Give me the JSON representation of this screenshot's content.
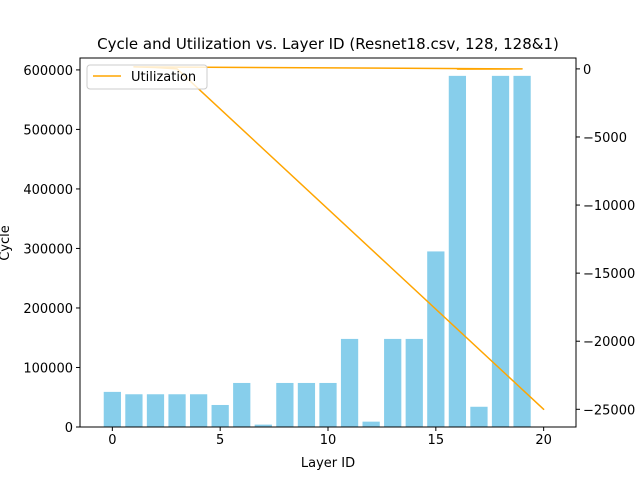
{
  "chart_data": {
    "type": "bar",
    "title": "Cycle and Utilization vs. Layer ID (Resnet18.csv, 128, 128&1)",
    "xlabel": "Layer ID",
    "ylabel": "Cycle",
    "y2label": "",
    "xlim": [
      -1.5,
      21.5
    ],
    "ylim": [
      0,
      620000
    ],
    "y2lim": [
      -26300,
      800
    ],
    "grid": false,
    "legend": {
      "position": "top-left",
      "entries": [
        "Utilization"
      ]
    },
    "xticks": [
      0,
      5,
      10,
      15,
      20
    ],
    "yticks": [
      0,
      100000,
      200000,
      300000,
      400000,
      500000,
      600000
    ],
    "y2ticks": [
      0,
      -5000,
      -10000,
      -15000,
      -20000,
      -25000
    ],
    "xtick_labels": [
      "0",
      "5",
      "10",
      "15",
      "20"
    ],
    "ytick_labels": [
      "0",
      "100000",
      "200000",
      "300000",
      "400000",
      "500000",
      "600000"
    ],
    "y2tick_labels": [
      "0",
      "−5000",
      "−10000",
      "−15000",
      "−20000",
      "−25000"
    ],
    "colors": {
      "bars": "#87ceeb",
      "line": "#ffa500"
    },
    "bar_series": {
      "name": "Cycle",
      "x": [
        0,
        1,
        2,
        3,
        4,
        5,
        6,
        7,
        8,
        9,
        10,
        11,
        12,
        13,
        14,
        15,
        16,
        17,
        18,
        19
      ],
      "values": [
        59000,
        55000,
        55000,
        55000,
        55000,
        37000,
        74000,
        4000,
        74000,
        74000,
        74000,
        148000,
        9000,
        148000,
        148000,
        295000,
        590000,
        34000,
        590000,
        590000
      ]
    },
    "line_series": {
      "name": "Utilization",
      "axis": "right",
      "x": [
        3,
        20,
        3,
        2,
        1,
        19,
        16,
        19
      ],
      "values": [
        0,
        -25000,
        0,
        100,
        150,
        0,
        -20,
        0
      ]
    }
  }
}
